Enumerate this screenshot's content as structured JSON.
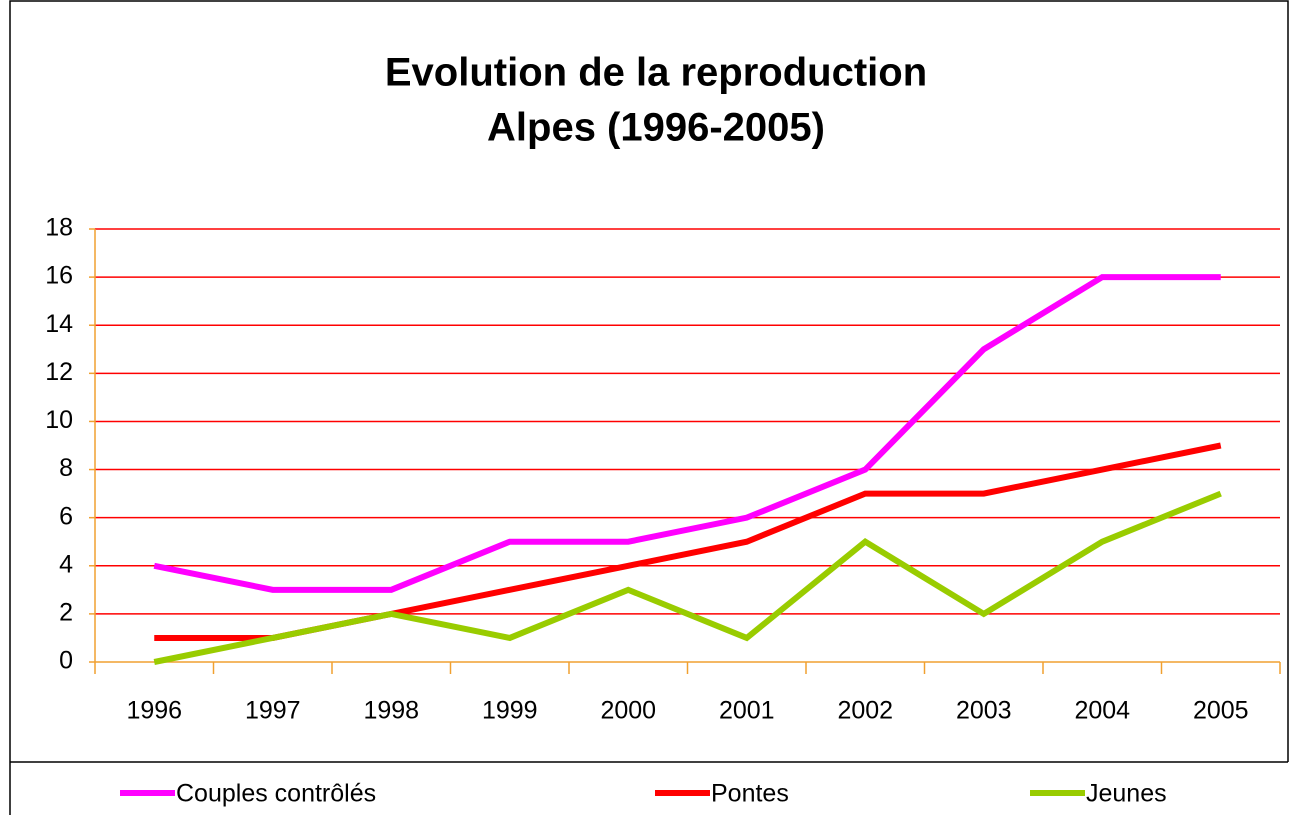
{
  "chart_data": {
    "type": "line",
    "title": [
      "Evolution de la reproduction",
      "Alpes (1996-2005)"
    ],
    "categories": [
      "1996",
      "1997",
      "1998",
      "1999",
      "2000",
      "2001",
      "2002",
      "2003",
      "2004",
      "2005"
    ],
    "series": [
      {
        "name": "Couples contrôlés",
        "color": "#ff00ff",
        "values": [
          4,
          3,
          3,
          5,
          5,
          6,
          8,
          13,
          16,
          16
        ]
      },
      {
        "name": "Pontes",
        "color": "#ff0000",
        "values": [
          1,
          1,
          2,
          3,
          4,
          5,
          7,
          7,
          8,
          9
        ]
      },
      {
        "name": "Jeunes",
        "color": "#99cc00",
        "values": [
          0,
          1,
          2,
          1,
          3,
          1,
          5,
          2,
          5,
          7
        ]
      }
    ],
    "ylim": [
      0,
      18
    ],
    "yticks": [
      0,
      2,
      4,
      6,
      8,
      10,
      12,
      14,
      16,
      18
    ],
    "grid": true,
    "grid_color": "#ff0000",
    "axis_color": "#f0a030",
    "legend": "bottom"
  }
}
